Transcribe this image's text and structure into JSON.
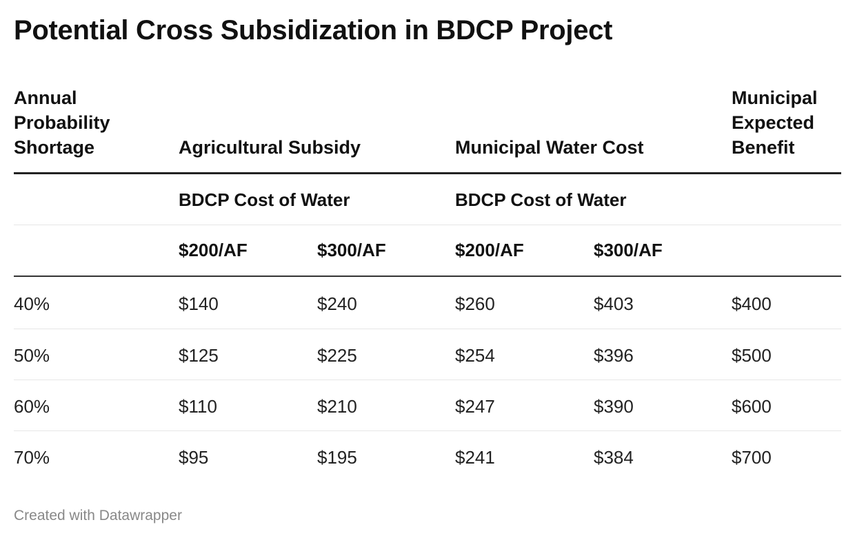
{
  "chart_data": {
    "type": "table",
    "title": "Potential Cross Subsidization in BDCP Project",
    "headers": {
      "shortage": [
        "Annual",
        "Probability",
        "Shortage"
      ],
      "agricultural": "Agricultural Subsidy",
      "municipal_cost": "Municipal Water Cost",
      "municipal_benefit": [
        "Municipal",
        "Expected",
        "Benefit"
      ]
    },
    "subheader": {
      "agricultural": "BDCP Cost of Water",
      "municipal_cost": "BDCP Cost of Water"
    },
    "price_row": [
      "$200/AF",
      "$300/AF",
      "$200/AF",
      "$300/AF"
    ],
    "rows": [
      [
        "40%",
        "$140",
        "$240",
        "$260",
        "$403",
        "$400"
      ],
      [
        "50%",
        "$125",
        "$225",
        "$254",
        "$396",
        "$500"
      ],
      [
        "60%",
        "$110",
        "$210",
        "$247",
        "$390",
        "$600"
      ],
      [
        "70%",
        "$95",
        "$195",
        "$241",
        "$384",
        "$700"
      ]
    ]
  },
  "footer": "Created with Datawrapper"
}
